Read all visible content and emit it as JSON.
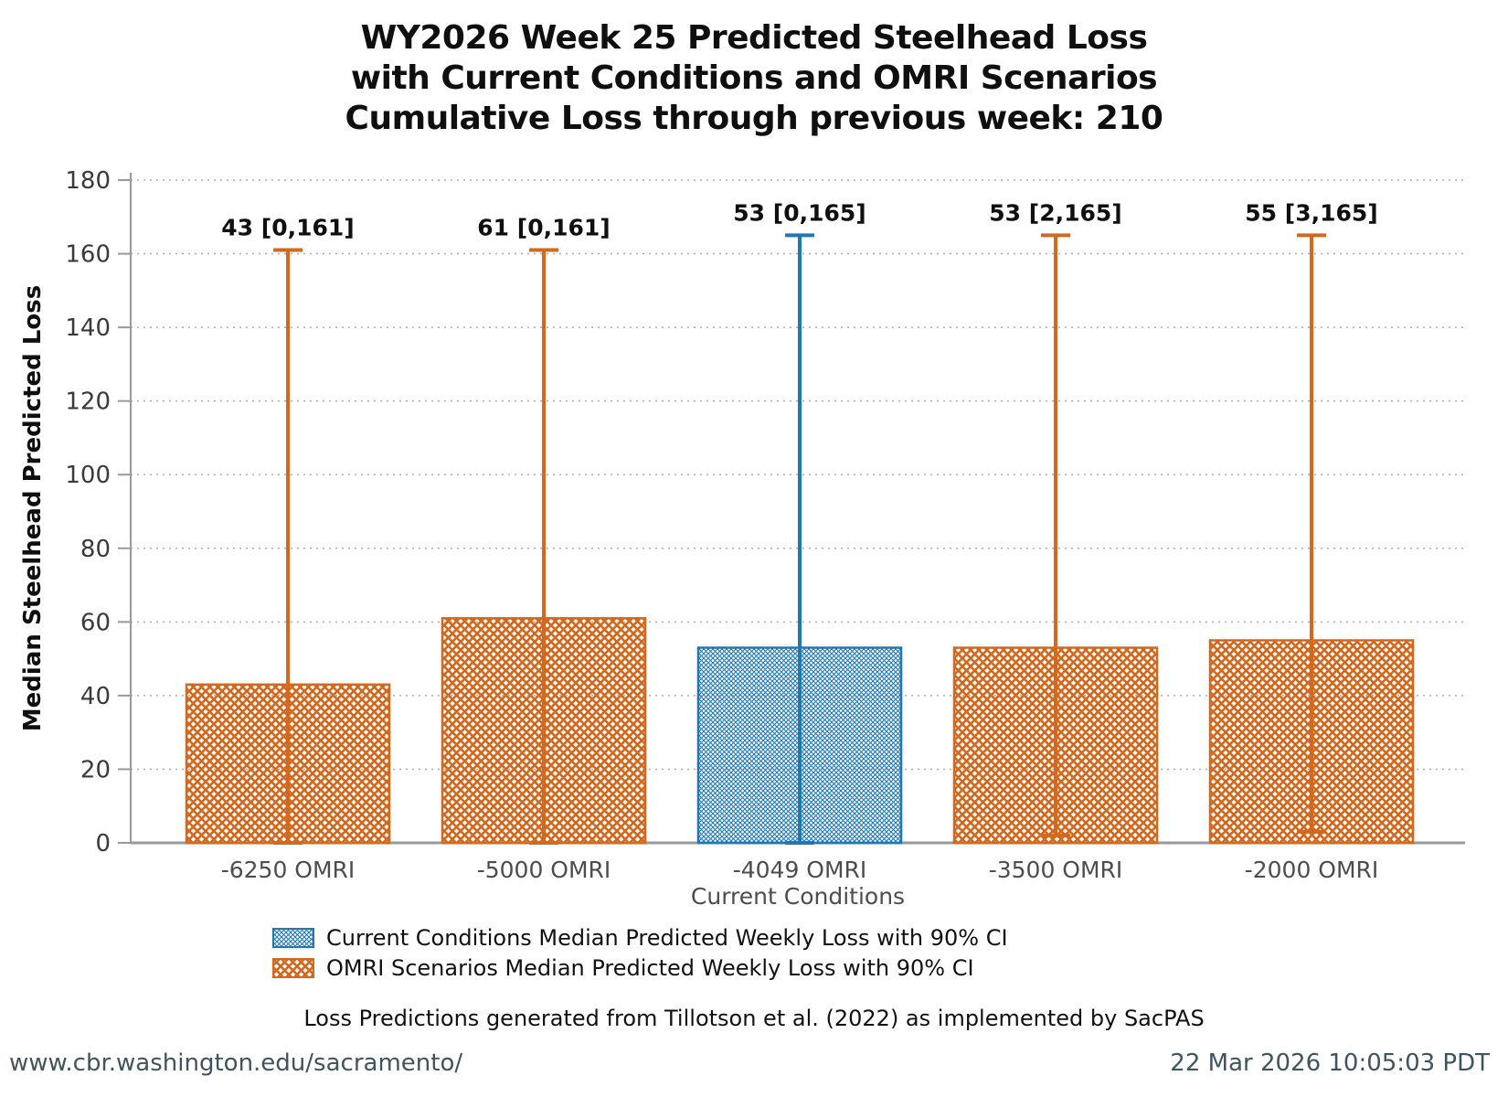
{
  "title": {
    "line1": "WY2026 Week 25 Predicted Steelhead Loss",
    "line2": "with Current Conditions and OMRI Scenarios",
    "line3": "Cumulative Loss through previous week: 210"
  },
  "axes": {
    "y_label": "Median Steelhead Predicted Loss",
    "x_label": "Current Conditions"
  },
  "legend": [
    {
      "series": "current",
      "label": "Current Conditions Median Predicted Weekly Loss with 90% CI"
    },
    {
      "series": "omri",
      "label": "OMRI Scenarios Median Predicted Weekly Loss with 90% CI"
    }
  ],
  "footnote": "Loss Predictions generated from Tillotson et al. (2022) as implemented by SacPAS",
  "footer": {
    "left": "www.cbr.washington.edu/sacramento/",
    "right": "22 Mar 2026 10:05:03 PDT"
  },
  "colors": {
    "current": "#1f77b4",
    "omri": "#d2691e",
    "axis": "#999999",
    "grid": "#adadad",
    "y_tick_text": "#3a3a3a",
    "x_tick_text": "#4d4d4d",
    "annotation_text": "#0f0f0f"
  },
  "chart_data": {
    "type": "bar",
    "title": "WY2026 Week 25 Predicted Steelhead Loss with Current Conditions and OMRI Scenarios; Cumulative Loss through previous week: 210",
    "xlabel": "Current Conditions",
    "ylabel": "Median Steelhead Predicted Loss",
    "categories": [
      "-6250 OMRI",
      "-5000 OMRI",
      "-4049 OMRI",
      "-3500 OMRI",
      "-2000 OMRI"
    ],
    "values": [
      43,
      61,
      53,
      53,
      55
    ],
    "ci_low": [
      0,
      0,
      0,
      2,
      3
    ],
    "ci_high": [
      161,
      161,
      165,
      165,
      165
    ],
    "annotations": [
      "43 [0,161]",
      "61 [0,161]",
      "53 [0,165]",
      "53 [2,165]",
      "55 [3,165]"
    ],
    "series_of_bar": [
      "omri",
      "omri",
      "current",
      "omri",
      "omri"
    ],
    "series_names": {
      "current": "Current Conditions Median Predicted Weekly Loss with 90% CI",
      "omri": "OMRI Scenarios Median Predicted Weekly Loss with 90% CI"
    },
    "ylim": [
      0,
      180
    ],
    "ytick_step": 20,
    "grid": "dotted-horizontal",
    "legend_position": "bottom"
  }
}
